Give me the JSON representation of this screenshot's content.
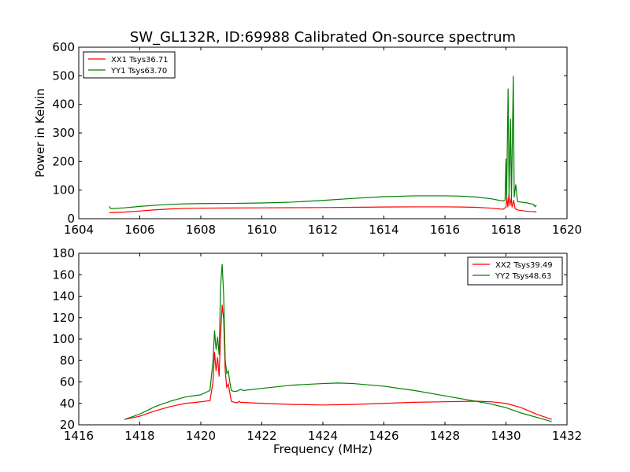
{
  "title": "SW_GL132R, ID:69988 Calibrated On-source spectrum",
  "chart_data": [
    {
      "type": "line",
      "ylabel": "Power in Kelvin",
      "xlabel": "",
      "xlim": [
        1604,
        1620
      ],
      "ylim": [
        0,
        600
      ],
      "xticks": [
        1604,
        1606,
        1608,
        1610,
        1612,
        1614,
        1616,
        1618,
        1620
      ],
      "yticks": [
        0,
        100,
        200,
        300,
        400,
        500,
        600
      ],
      "legend_position": "top-left",
      "grid": false,
      "series": [
        {
          "name": "XX1 Tsys36.71",
          "color": "#ff0000",
          "points": [
            [
              1605.0,
              21
            ],
            [
              1605.5,
              23
            ],
            [
              1606.0,
              27
            ],
            [
              1606.5,
              31
            ],
            [
              1607.0,
              34
            ],
            [
              1607.5,
              36
            ],
            [
              1608.0,
              37
            ],
            [
              1609.0,
              37.5
            ],
            [
              1610.0,
              38
            ],
            [
              1611.0,
              38.5
            ],
            [
              1612.0,
              39
            ],
            [
              1613.0,
              40
            ],
            [
              1614.0,
              41
            ],
            [
              1615.0,
              41.5
            ],
            [
              1616.0,
              41.5
            ],
            [
              1616.5,
              41
            ],
            [
              1617.0,
              40
            ],
            [
              1617.5,
              37
            ],
            [
              1617.9,
              33
            ],
            [
              1618.0,
              40
            ],
            [
              1618.03,
              75
            ],
            [
              1618.06,
              40
            ],
            [
              1618.1,
              88
            ],
            [
              1618.13,
              45
            ],
            [
              1618.17,
              70
            ],
            [
              1618.2,
              40
            ],
            [
              1618.25,
              65
            ],
            [
              1618.3,
              35
            ],
            [
              1618.4,
              30
            ],
            [
              1618.6,
              27
            ],
            [
              1618.8,
              25
            ],
            [
              1619.0,
              24
            ]
          ]
        },
        {
          "name": "YY1 Tsys63.70",
          "color": "#008000",
          "points": [
            [
              1605.0,
              44
            ],
            [
              1605.05,
              35
            ],
            [
              1605.5,
              38
            ],
            [
              1606.0,
              43
            ],
            [
              1606.5,
              47
            ],
            [
              1607.0,
              50
            ],
            [
              1607.5,
              52
            ],
            [
              1608.0,
              53
            ],
            [
              1609.0,
              53.5
            ],
            [
              1610.0,
              55
            ],
            [
              1611.0,
              58
            ],
            [
              1612.0,
              64
            ],
            [
              1613.0,
              71
            ],
            [
              1614.0,
              77
            ],
            [
              1615.0,
              80
            ],
            [
              1616.0,
              80
            ],
            [
              1616.5,
              79
            ],
            [
              1617.0,
              76
            ],
            [
              1617.5,
              70
            ],
            [
              1617.9,
              62
            ],
            [
              1617.97,
              65
            ],
            [
              1618.0,
              210
            ],
            [
              1618.02,
              70
            ],
            [
              1618.07,
              455
            ],
            [
              1618.1,
              80
            ],
            [
              1618.15,
              350
            ],
            [
              1618.18,
              60
            ],
            [
              1618.24,
              500
            ],
            [
              1618.27,
              75
            ],
            [
              1618.32,
              120
            ],
            [
              1618.38,
              60
            ],
            [
              1618.5,
              58
            ],
            [
              1618.7,
              55
            ],
            [
              1618.9,
              50
            ],
            [
              1618.95,
              42
            ],
            [
              1619.0,
              48
            ]
          ]
        }
      ]
    },
    {
      "type": "line",
      "ylabel": "",
      "xlabel": "Frequency (MHz)",
      "xlim": [
        1416,
        1432
      ],
      "ylim": [
        20,
        180
      ],
      "xticks": [
        1416,
        1418,
        1420,
        1422,
        1424,
        1426,
        1428,
        1430,
        1432
      ],
      "yticks": [
        20,
        40,
        60,
        80,
        100,
        120,
        140,
        160,
        180
      ],
      "legend_position": "top-right",
      "grid": false,
      "series": [
        {
          "name": "XX2 Tsys39.49",
          "color": "#ff0000",
          "points": [
            [
              1417.5,
              25
            ],
            [
              1418.0,
              28
            ],
            [
              1418.5,
              33
            ],
            [
              1419.0,
              37
            ],
            [
              1419.5,
              40
            ],
            [
              1420.0,
              41.5
            ],
            [
              1420.3,
              42.5
            ],
            [
              1420.4,
              60
            ],
            [
              1420.45,
              88
            ],
            [
              1420.5,
              70
            ],
            [
              1420.55,
              83
            ],
            [
              1420.6,
              65
            ],
            [
              1420.65,
              105
            ],
            [
              1420.7,
              132
            ],
            [
              1420.75,
              118
            ],
            [
              1420.8,
              70
            ],
            [
              1420.85,
              55
            ],
            [
              1420.9,
              58
            ],
            [
              1420.95,
              50
            ],
            [
              1421.0,
              42
            ],
            [
              1421.1,
              41
            ],
            [
              1421.2,
              40.5
            ],
            [
              1421.25,
              42
            ],
            [
              1421.3,
              41
            ],
            [
              1422.0,
              40
            ],
            [
              1423.0,
              39
            ],
            [
              1424.0,
              38.5
            ],
            [
              1425.0,
              39
            ],
            [
              1426.0,
              40
            ],
            [
              1427.0,
              41
            ],
            [
              1428.0,
              41.5
            ],
            [
              1429.0,
              42
            ],
            [
              1429.5,
              41.5
            ],
            [
              1430.0,
              40
            ],
            [
              1430.5,
              36
            ],
            [
              1431.0,
              30
            ],
            [
              1431.5,
              25
            ]
          ]
        },
        {
          "name": "YY2 Tsys48.63",
          "color": "#008000",
          "points": [
            [
              1417.5,
              25
            ],
            [
              1418.0,
              30
            ],
            [
              1418.5,
              37
            ],
            [
              1419.0,
              42
            ],
            [
              1419.5,
              46
            ],
            [
              1420.0,
              48
            ],
            [
              1420.3,
              52
            ],
            [
              1420.4,
              80
            ],
            [
              1420.45,
              108
            ],
            [
              1420.5,
              90
            ],
            [
              1420.55,
              102
            ],
            [
              1420.6,
              85
            ],
            [
              1420.65,
              150
            ],
            [
              1420.7,
              170
            ],
            [
              1420.75,
              140
            ],
            [
              1420.8,
              80
            ],
            [
              1420.85,
              68
            ],
            [
              1420.9,
              70
            ],
            [
              1420.95,
              60
            ],
            [
              1421.0,
              52
            ],
            [
              1421.1,
              51
            ],
            [
              1421.2,
              51.5
            ],
            [
              1421.3,
              53
            ],
            [
              1421.4,
              52
            ],
            [
              1422.0,
              54
            ],
            [
              1423.0,
              57
            ],
            [
              1424.0,
              58.5
            ],
            [
              1424.5,
              59
            ],
            [
              1425.0,
              58.5
            ],
            [
              1426.0,
              56
            ],
            [
              1427.0,
              52
            ],
            [
              1428.0,
              47
            ],
            [
              1429.0,
              42
            ],
            [
              1429.5,
              39.5
            ],
            [
              1430.0,
              36
            ],
            [
              1430.5,
              31
            ],
            [
              1431.0,
              27
            ],
            [
              1431.5,
              23
            ]
          ]
        }
      ]
    }
  ]
}
